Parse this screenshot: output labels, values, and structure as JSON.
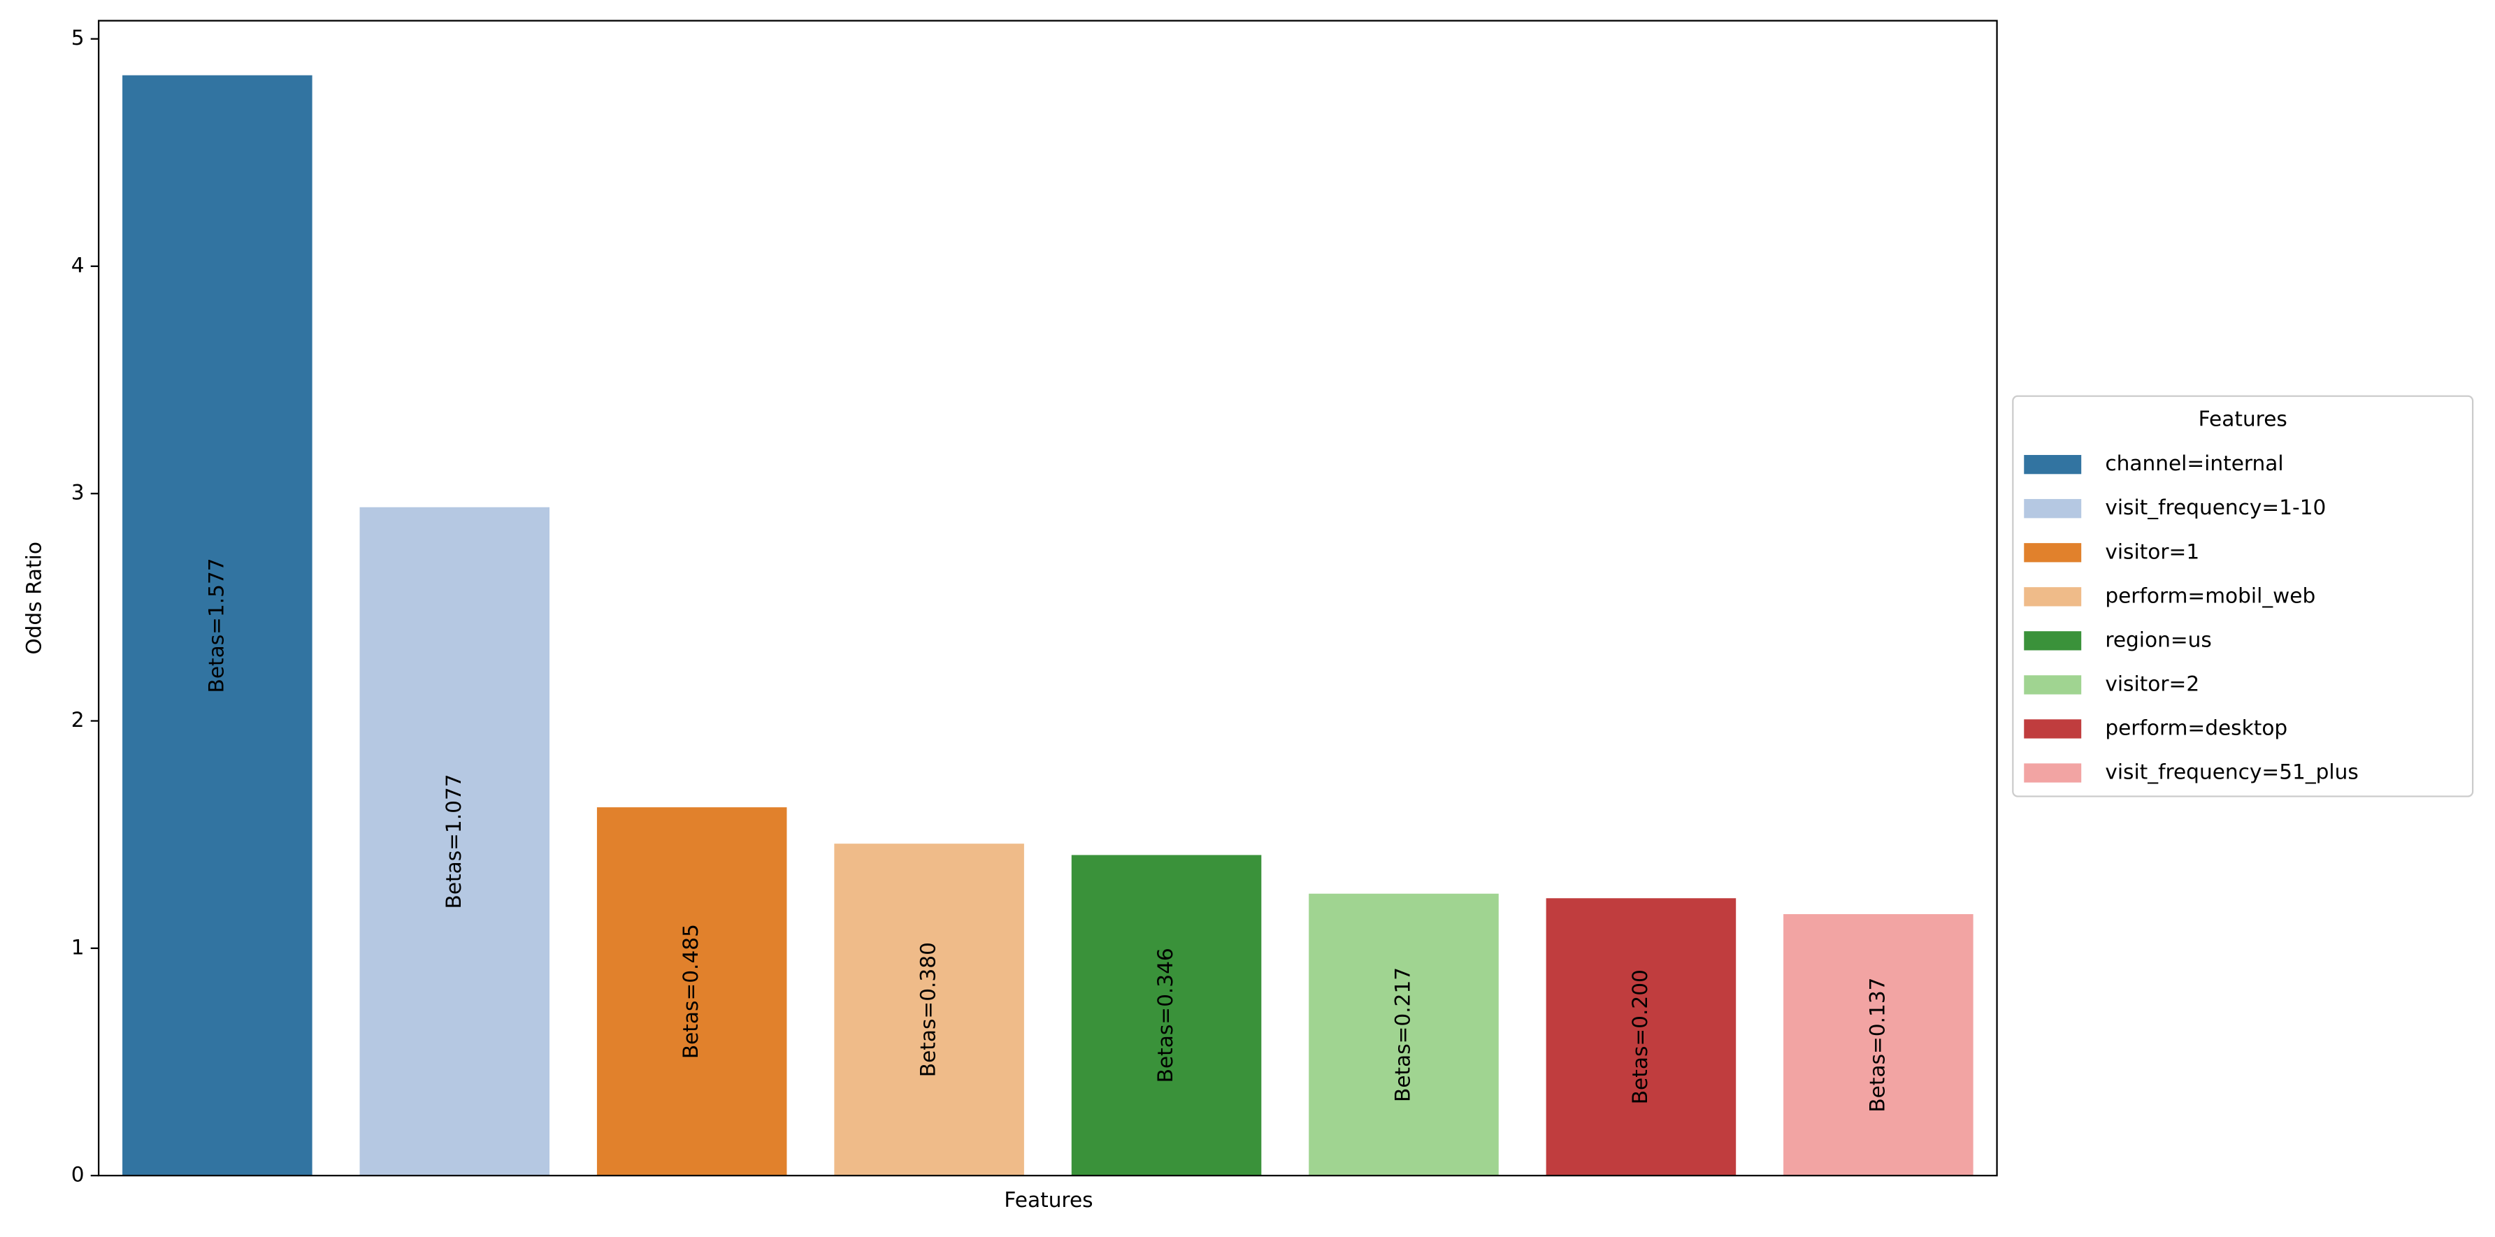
{
  "chart_data": {
    "type": "bar",
    "xlabel": "Features",
    "ylabel": "Odds Ratio",
    "categories": [
      "channel=internal",
      "visit_frequency=1-10",
      "visitor=1",
      "perform=mobil_web",
      "region=us",
      "visitor=2",
      "perform=desktop",
      "visit_frequency=51_plus"
    ],
    "values": [
      4.84,
      2.94,
      1.62,
      1.46,
      1.41,
      1.24,
      1.22,
      1.15
    ],
    "bar_labels": [
      "Betas=1.577",
      "Betas=1.077",
      "Betas=0.485",
      "Betas=0.380",
      "Betas=0.346",
      "Betas=0.217",
      "Betas=0.200",
      "Betas=0.137"
    ],
    "colors": [
      "#3274a1",
      "#b5c8e2",
      "#e1812c",
      "#efbb89",
      "#3a923a",
      "#a0d491",
      "#c03d3e",
      "#f2a4a3"
    ],
    "ylim": [
      0,
      5.08
    ],
    "yticks": [
      0,
      1,
      2,
      3,
      4,
      5
    ],
    "legend_title": "Features",
    "legend": "outside-right"
  }
}
